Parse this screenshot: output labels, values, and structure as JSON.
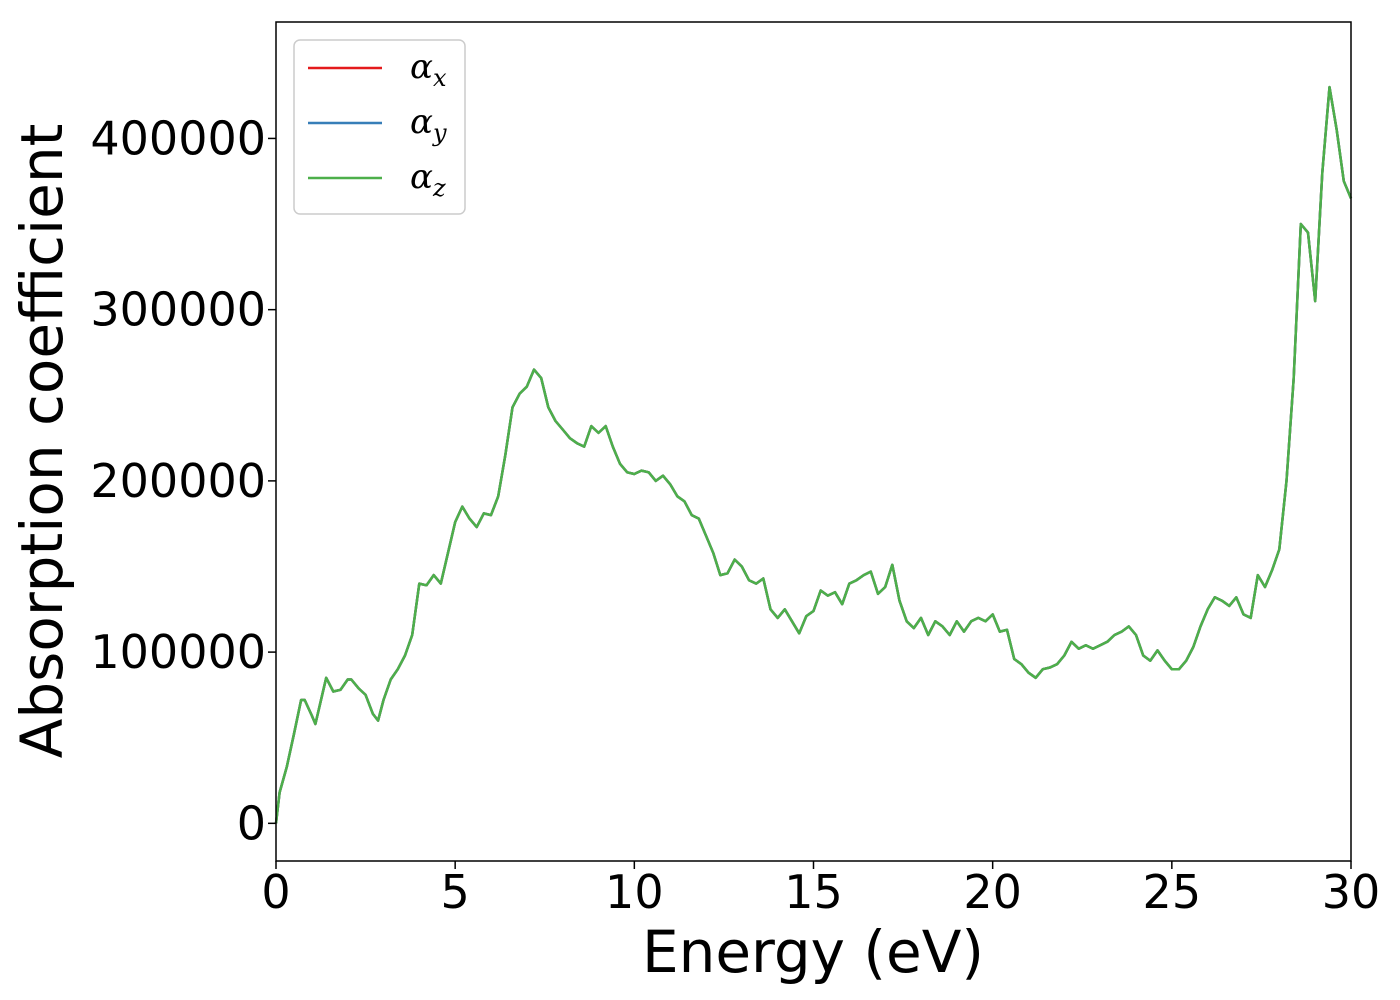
{
  "chart_data": {
    "type": "line",
    "xlabel": "Energy (eV)",
    "ylabel": "Absorption coefficient",
    "xlim": [
      0,
      30
    ],
    "ylim": [
      -22000,
      468000
    ],
    "xticks": [
      "0",
      "5",
      "10",
      "15",
      "20",
      "25",
      "30"
    ],
    "yticks": [
      "0",
      "100000",
      "200000",
      "300000",
      "400000"
    ],
    "grid": false,
    "legend_position": "top-left",
    "series": [
      {
        "name": "α",
        "subscript": "x",
        "color": "#e41a1c"
      },
      {
        "name": "α",
        "subscript": "y",
        "color": "#377eb8"
      },
      {
        "name": "α",
        "subscript": "z",
        "color": "#4daf4a"
      }
    ],
    "x": [
      0,
      0.1,
      0.3,
      0.5,
      0.7,
      0.8,
      1.0,
      1.1,
      1.3,
      1.4,
      1.6,
      1.8,
      2.0,
      2.1,
      2.3,
      2.5,
      2.7,
      2.85,
      3.0,
      3.2,
      3.4,
      3.6,
      3.8,
      4.0,
      4.2,
      4.4,
      4.6,
      4.8,
      5.0,
      5.2,
      5.4,
      5.6,
      5.8,
      6.0,
      6.2,
      6.4,
      6.6,
      6.8,
      7.0,
      7.2,
      7.4,
      7.6,
      7.8,
      8.0,
      8.2,
      8.4,
      8.6,
      8.8,
      9.0,
      9.2,
      9.4,
      9.6,
      9.8,
      10.0,
      10.2,
      10.4,
      10.6,
      10.8,
      11.0,
      11.2,
      11.4,
      11.6,
      11.8,
      12.0,
      12.2,
      12.4,
      12.6,
      12.8,
      13.0,
      13.2,
      13.4,
      13.6,
      13.8,
      14.0,
      14.2,
      14.4,
      14.6,
      14.8,
      15.0,
      15.2,
      15.4,
      15.6,
      15.8,
      16.0,
      16.2,
      16.4,
      16.6,
      16.8,
      17.0,
      17.2,
      17.4,
      17.6,
      17.8,
      18.0,
      18.2,
      18.4,
      18.6,
      18.8,
      19.0,
      19.2,
      19.4,
      19.6,
      19.8,
      20.0,
      20.2,
      20.4,
      20.6,
      20.8,
      21.0,
      21.2,
      21.4,
      21.6,
      21.8,
      22.0,
      22.2,
      22.4,
      22.6,
      22.8,
      23.0,
      23.2,
      23.4,
      23.6,
      23.8,
      24.0,
      24.2,
      24.4,
      24.6,
      24.8,
      25.0,
      25.2,
      25.4,
      25.6,
      25.8,
      26.0,
      26.2,
      26.4,
      26.6,
      26.8,
      27.0,
      27.2,
      27.4,
      27.6,
      27.8,
      28.0,
      28.2,
      28.4,
      28.6,
      28.8,
      29.0,
      29.2,
      29.4,
      29.6,
      29.8,
      30.0
    ],
    "y": [
      0,
      18000,
      33000,
      52000,
      72000,
      72000,
      63000,
      58000,
      76000,
      85000,
      77000,
      78000,
      84000,
      84000,
      79000,
      75000,
      64000,
      60000,
      72000,
      84000,
      90000,
      98000,
      110000,
      140000,
      139000,
      145000,
      140000,
      158000,
      176000,
      185000,
      178000,
      173000,
      181000,
      180000,
      191000,
      215000,
      243000,
      251000,
      255000,
      265000,
      260000,
      243000,
      235000,
      230000,
      225000,
      222000,
      220000,
      232000,
      228000,
      232000,
      220000,
      210000,
      205000,
      204000,
      206000,
      205000,
      200000,
      203000,
      198000,
      191000,
      188000,
      180000,
      178000,
      168000,
      158000,
      145000,
      146000,
      154000,
      150000,
      142000,
      140000,
      143000,
      125000,
      120000,
      125000,
      118000,
      111000,
      121000,
      124000,
      136000,
      133000,
      135000,
      128000,
      140000,
      142000,
      145000,
      147000,
      134000,
      138000,
      151000,
      130000,
      118000,
      114000,
      120000,
      110000,
      118000,
      115000,
      110000,
      118000,
      112000,
      118000,
      120000,
      118000,
      122000,
      112000,
      113000,
      96000,
      93000,
      88000,
      85000,
      90000,
      91000,
      93000,
      98000,
      106000,
      102000,
      104000,
      102000,
      104000,
      106000,
      110000,
      112000,
      115000,
      110000,
      98000,
      95000,
      101000,
      95000,
      90000,
      90000,
      95000,
      103000,
      115000,
      125000,
      132000,
      130000,
      127000,
      132000,
      122000,
      120000,
      145000,
      138000,
      148000,
      160000,
      200000,
      260000,
      350000,
      345000,
      305000,
      380000,
      430000,
      405000,
      375000,
      365000
    ]
  }
}
